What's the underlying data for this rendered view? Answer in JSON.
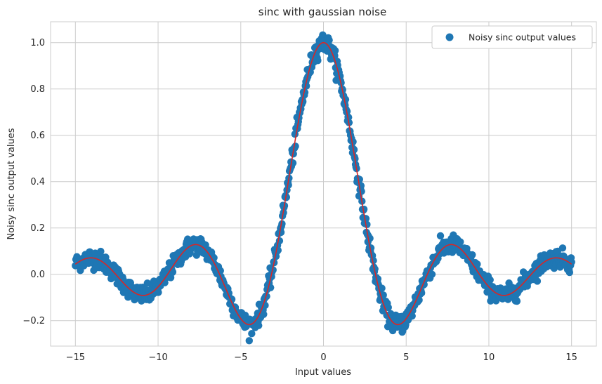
{
  "chart_data": {
    "type": "scatter",
    "title": "sinc with gaussian noise",
    "xlabel": "Input values",
    "ylabel": "Noisy sinc output values",
    "xlim": [
      -16.5,
      16.5
    ],
    "ylim": [
      -0.31,
      1.09
    ],
    "x_ticks": [
      -15,
      -10,
      -5,
      0,
      5,
      10,
      15
    ],
    "x_tick_labels": [
      "−15",
      "−10",
      "−5",
      "0",
      "5",
      "10",
      "15"
    ],
    "y_ticks": [
      -0.2,
      0.0,
      0.2,
      0.4,
      0.6,
      0.8,
      1.0
    ],
    "y_tick_labels": [
      "−0.2",
      "0.0",
      "0.2",
      "0.4",
      "0.6",
      "0.8",
      "1.0"
    ],
    "grid": true,
    "legend": {
      "position": "top-right",
      "entries": [
        "Noisy sinc output values"
      ]
    },
    "series": [
      {
        "name": "Noisy sinc output values",
        "kind": "scatter",
        "color": "#1f77b4",
        "x_range": [
          -15,
          15
        ],
        "num_points": 1000,
        "noise_std": 0.02,
        "underlying": "sin(x)/x"
      },
      {
        "kind": "line",
        "color": "#d62728",
        "x_range": [
          -15,
          15
        ],
        "function": "sin(x)/x"
      }
    ],
    "key_points": [
      {
        "x": -14.1,
        "y": 0.07
      },
      {
        "x": -10.9,
        "y": -0.09
      },
      {
        "x": -7.7,
        "y": 0.13
      },
      {
        "x": -4.5,
        "y": -0.22
      },
      {
        "x": 0,
        "y": 1.0
      },
      {
        "x": 4.5,
        "y": -0.22
      },
      {
        "x": 7.7,
        "y": 0.13
      },
      {
        "x": 10.9,
        "y": -0.09
      },
      {
        "x": 14.1,
        "y": 0.07
      }
    ]
  },
  "colors": {
    "background": "#ffffff",
    "grid": "#cccccc",
    "spine": "#cccccc",
    "scatter": "#1f77b4",
    "line": "#d62728"
  }
}
